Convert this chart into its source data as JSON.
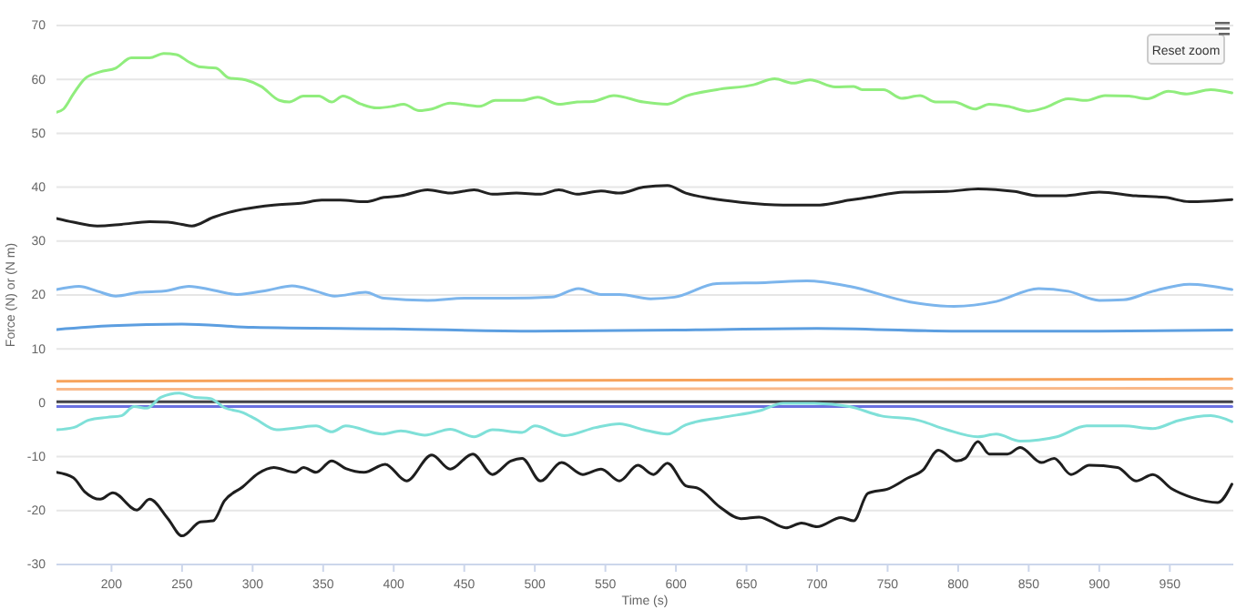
{
  "chart_data": {
    "type": "line",
    "xlabel": "Time (s)",
    "ylabel": "Force (N) or (N m)",
    "xlim": [
      161,
      995
    ],
    "ylim": [
      -30,
      70
    ],
    "xticks": [
      200,
      250,
      300,
      350,
      400,
      450,
      500,
      550,
      600,
      650,
      700,
      750,
      800,
      850,
      900,
      950
    ],
    "yticks": [
      -30,
      -20,
      -10,
      0,
      10,
      20,
      30,
      40,
      50,
      60,
      70
    ],
    "grid": "y",
    "marker": "none",
    "line_style": "solid",
    "annotations": [
      "Reset zoom"
    ],
    "series": [
      {
        "color": "#90ed7d",
        "x": [
          161,
          166,
          173,
          181,
          192,
          203,
          214,
          227,
          237,
          246,
          255,
          263,
          274,
          283,
          295,
          306,
          319,
          326,
          336,
          347,
          356,
          364,
          377,
          388,
          399,
          407,
          418,
          427,
          440,
          461,
          472,
          491,
          502,
          517,
          530,
          541,
          556,
          577,
          594,
          607,
          629,
          655,
          670,
          683,
          695,
          713,
          726,
          732,
          747,
          760,
          773,
          784,
          797,
          812,
          822,
          835,
          850,
          861,
          878,
          891,
          904,
          921,
          934,
          949,
          962,
          979,
          994
        ],
        "values": [
          53.9,
          54.5,
          57.3,
          60.1,
          61.4,
          62.1,
          64,
          64,
          64.8,
          64.6,
          63.2,
          62.3,
          62.1,
          60.3,
          59.9,
          58.7,
          56.1,
          55.8,
          56.9,
          56.9,
          55.8,
          56.9,
          55.4,
          54.7,
          55,
          55.4,
          54.2,
          54.5,
          55.6,
          55,
          56.1,
          56.1,
          56.7,
          55.4,
          55.8,
          55.9,
          57,
          55.8,
          55.4,
          56.9,
          58.1,
          59,
          60.1,
          59.3,
          59.9,
          58.6,
          58.7,
          58.1,
          58.1,
          56.5,
          57,
          55.8,
          55.8,
          54.5,
          55.4,
          55,
          54.1,
          54.7,
          56.4,
          56.1,
          57,
          56.9,
          56.4,
          57.8,
          57.3,
          58.1,
          57.5
        ]
      },
      {
        "color": "#222222",
        "x": [
          161,
          173,
          190,
          207,
          227,
          240,
          250,
          257,
          272,
          283,
          293,
          315,
          334,
          349,
          362,
          380,
          393,
          405,
          424,
          440,
          457,
          470,
          487,
          504,
          517,
          530,
          547,
          560,
          577,
          594,
          607,
          625,
          646,
          676,
          702,
          723,
          736,
          762,
          792,
          814,
          840,
          857,
          874,
          900,
          926,
          947,
          964,
          994
        ],
        "values": [
          34.2,
          33.5,
          32.8,
          33.1,
          33.6,
          33.5,
          33.1,
          32.8,
          34.4,
          35.3,
          35.9,
          36.7,
          37,
          37.6,
          37.6,
          37.3,
          38.1,
          38.4,
          39.5,
          38.9,
          39.5,
          38.7,
          38.9,
          38.7,
          39.5,
          38.7,
          39.3,
          38.9,
          40,
          40.3,
          38.9,
          37.9,
          37.2,
          36.7,
          36.7,
          37.6,
          38.1,
          39.1,
          39.2,
          39.7,
          39.2,
          38.4,
          38.4,
          39.1,
          38.4,
          38.1,
          37.3,
          37.7
        ]
      },
      {
        "color": "#7cb5ec",
        "x": [
          161,
          177,
          190,
          203,
          220,
          237,
          255,
          272,
          289,
          311,
          328,
          345,
          358,
          380,
          393,
          424,
          450,
          481,
          512,
          531,
          547,
          560,
          582,
          599,
          629,
          663,
          693,
          723,
          766,
          797,
          827,
          857,
          878,
          900,
          917,
          938,
          964,
          994
        ],
        "values": [
          21,
          21.6,
          20.7,
          19.8,
          20.5,
          20.7,
          21.6,
          20.9,
          20.1,
          20.9,
          21.7,
          20.7,
          19.8,
          20.5,
          19.4,
          19,
          19.4,
          19.4,
          19.6,
          21.2,
          20.1,
          20.1,
          19.3,
          19.6,
          22.1,
          22.3,
          22.6,
          21.6,
          18.7,
          17.9,
          18.8,
          21.2,
          20.7,
          19,
          19.1,
          20.7,
          22,
          21
        ]
      },
      {
        "color": "#5c9ee0",
        "x": [
          161,
          200,
          250,
          300,
          400,
          500,
          600,
          700,
          800,
          900,
          994
        ],
        "values": [
          13.6,
          14.3,
          14.6,
          14,
          13.7,
          13.3,
          13.5,
          13.8,
          13.3,
          13.3,
          13.5
        ]
      },
      {
        "color": "#f7a35c",
        "x": [
          161,
          994
        ],
        "values": [
          4,
          4.4
        ]
      },
      {
        "color": "#f9b98a",
        "x": [
          161,
          994
        ],
        "values": [
          2.5,
          2.7
        ]
      },
      {
        "color": "#434348",
        "x": [
          161,
          994
        ],
        "values": [
          0.2,
          0.2
        ]
      },
      {
        "color": "#6a70e0",
        "x": [
          161,
          994
        ],
        "values": [
          -0.7,
          -0.7
        ]
      },
      {
        "color": "#7fe0d8",
        "x": [
          161,
          173,
          184,
          197,
          207,
          216,
          225,
          235,
          248,
          259,
          270,
          280,
          293,
          302,
          317,
          332,
          345,
          356,
          366,
          392,
          405,
          422,
          440,
          457,
          470,
          491,
          500,
          521,
          543,
          560,
          577,
          594,
          607,
          633,
          659,
          676,
          698,
          723,
          745,
          771,
          792,
          814,
          827,
          844,
          870,
          891,
          917,
          938,
          956,
          979,
          994
        ],
        "values": [
          -5,
          -4.6,
          -3.2,
          -2.7,
          -2.4,
          -0.7,
          -1,
          1,
          1.8,
          1,
          0.8,
          -0.9,
          -1.8,
          -3,
          -5,
          -4.6,
          -4.3,
          -5.4,
          -4.3,
          -5.8,
          -5.2,
          -6,
          -4.9,
          -6.3,
          -5,
          -5.5,
          -4.3,
          -6.1,
          -4.6,
          -3.9,
          -5,
          -5.8,
          -4.1,
          -2.7,
          -1.5,
          -0.1,
          -0.1,
          -0.7,
          -2.4,
          -3.2,
          -5,
          -6.3,
          -5.8,
          -7.1,
          -6.3,
          -4.3,
          -4.3,
          -4.8,
          -3.3,
          -2.4,
          -3.5
        ]
      },
      {
        "color": "#1e1e1e",
        "x": [
          161,
          173,
          181,
          192,
          201,
          218,
          227,
          240,
          250,
          263,
          272,
          280,
          293,
          304,
          315,
          330,
          336,
          345,
          356,
          366,
          379,
          394,
          409,
          427,
          440,
          456,
          470,
          483,
          491,
          504,
          519,
          534,
          547,
          560,
          573,
          584,
          594,
          607,
          616,
          631,
          646,
          659,
          678,
          689,
          700,
          717,
          726,
          736,
          751,
          764,
          775,
          786,
          799,
          805,
          814,
          822,
          835,
          844,
          859,
          868,
          880,
          893,
          913,
          926,
          938,
          951,
          966,
          984,
          994
        ],
        "values": [
          -12.9,
          -13.9,
          -16.5,
          -17.9,
          -16.7,
          -19.9,
          -17.9,
          -21.5,
          -24.7,
          -22.1,
          -21.9,
          -18.2,
          -15.6,
          -13.1,
          -12,
          -12.9,
          -12,
          -12.9,
          -10.8,
          -12.2,
          -12.9,
          -11.4,
          -14.5,
          -9.7,
          -12.3,
          -9.5,
          -13.3,
          -10.8,
          -10.3,
          -14.5,
          -11.1,
          -13.3,
          -12.3,
          -14.5,
          -11.6,
          -13.3,
          -11.2,
          -15.4,
          -15.9,
          -19.3,
          -21.5,
          -21.2,
          -23.2,
          -22.3,
          -23,
          -21.3,
          -21.9,
          -16.8,
          -15.9,
          -14,
          -12.5,
          -8.8,
          -10.8,
          -10.3,
          -7.2,
          -9.5,
          -9.5,
          -8.3,
          -11.1,
          -10.3,
          -13.3,
          -11.6,
          -12,
          -14.5,
          -13.3,
          -15.9,
          -17.6,
          -18.5,
          -15.1
        ]
      }
    ]
  }
}
